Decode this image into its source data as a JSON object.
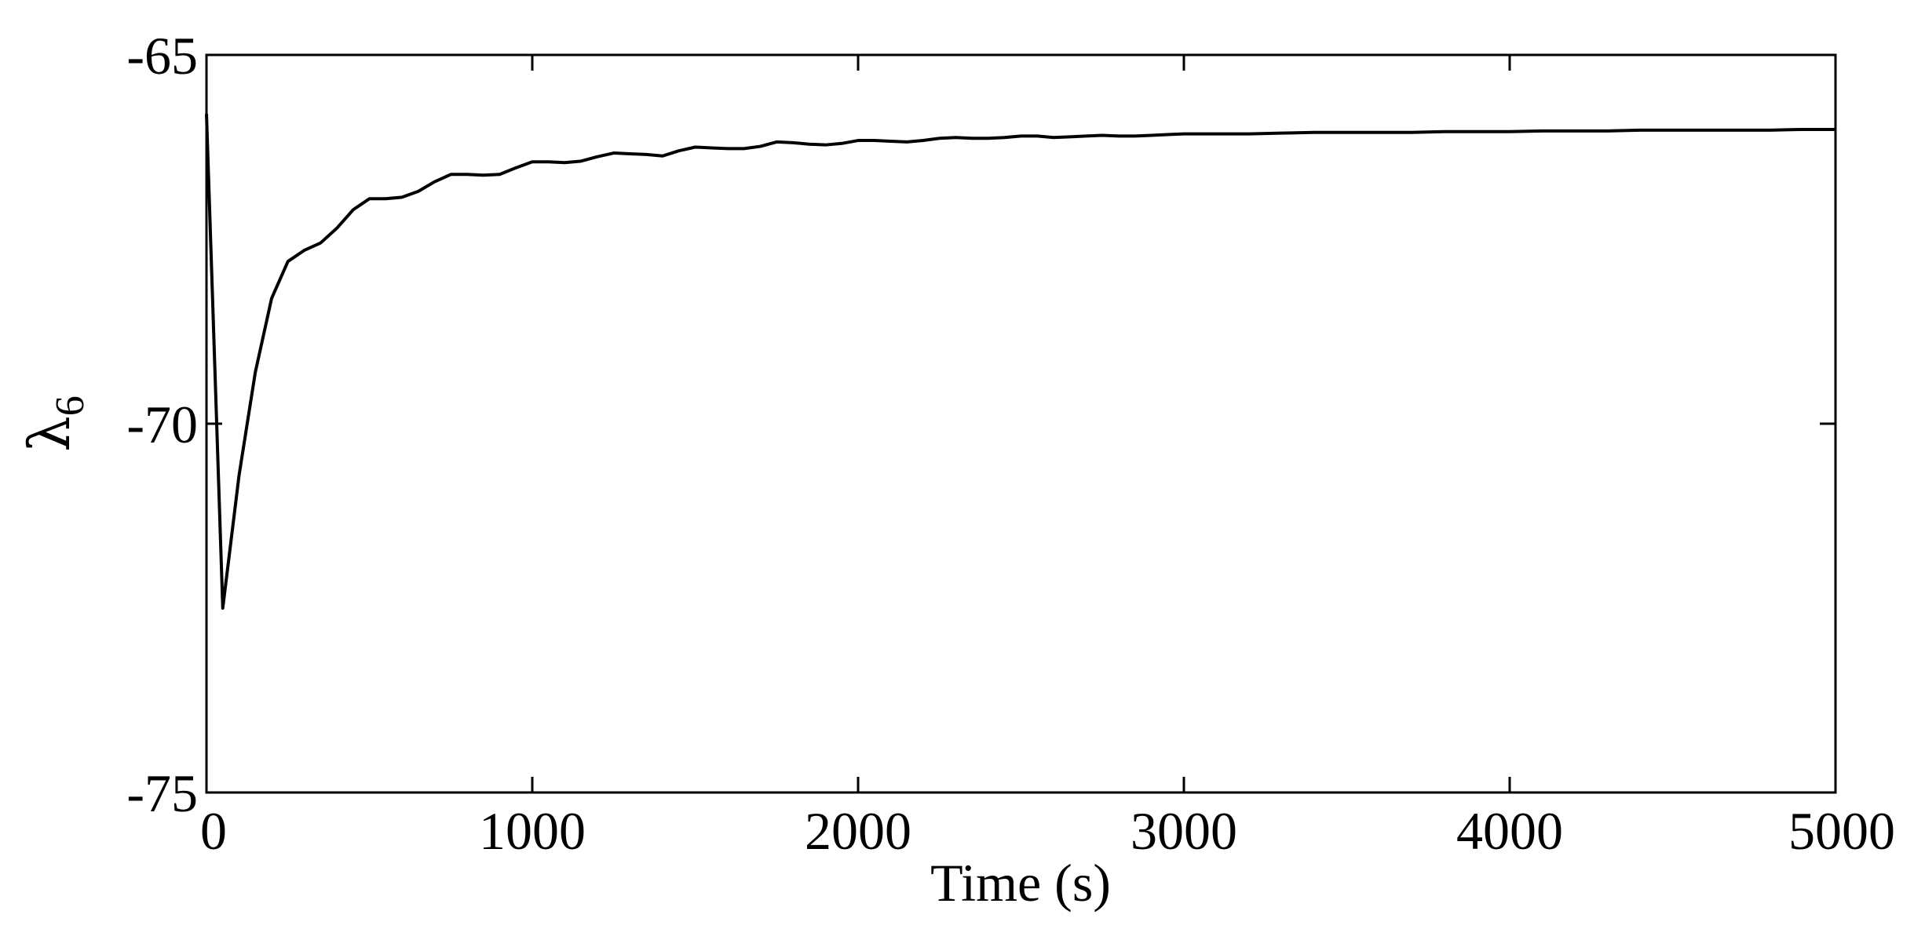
{
  "chart_data": {
    "type": "line",
    "xlabel": "Time (s)",
    "ylabel": "λ",
    "ylabel_subscript": "6",
    "xlim": [
      0,
      5000
    ],
    "ylim": [
      -75,
      -65
    ],
    "x_ticks": [
      0,
      1000,
      2000,
      3000,
      4000,
      5000
    ],
    "x_tick_labels": [
      "0",
      "1000",
      "2000",
      "3000",
      "4000",
      "5000"
    ],
    "y_ticks": [
      -65,
      -70,
      -75
    ],
    "y_tick_labels": [
      "-65",
      "-70",
      "-75"
    ],
    "grid": false,
    "line_color": "#000000",
    "series": [
      {
        "x": [
          0,
          50,
          100,
          150,
          200,
          250,
          300,
          350,
          400,
          450,
          500,
          550,
          600,
          650,
          700,
          750,
          800,
          850,
          900,
          950,
          1000,
          1050,
          1100,
          1150,
          1200,
          1250,
          1300,
          1350,
          1400,
          1450,
          1500,
          1550,
          1600,
          1650,
          1700,
          1750,
          1800,
          1850,
          1900,
          1950,
          2000,
          2050,
          2100,
          2150,
          2200,
          2250,
          2300,
          2350,
          2400,
          2450,
          2500,
          2550,
          2600,
          2650,
          2700,
          2750,
          2800,
          2850,
          2900,
          2950,
          3000,
          3100,
          3200,
          3300,
          3400,
          3500,
          3600,
          3700,
          3800,
          3900,
          4000,
          4100,
          4200,
          4300,
          4400,
          4500,
          4600,
          4700,
          4800,
          4900,
          5000
        ],
        "y": [
          -65.8,
          -72.5,
          -70.7,
          -69.3,
          -68.3,
          -67.8,
          -67.65,
          -67.55,
          -67.35,
          -67.1,
          -66.95,
          -66.95,
          -66.93,
          -66.85,
          -66.72,
          -66.62,
          -66.62,
          -66.63,
          -66.62,
          -66.53,
          -66.45,
          -66.45,
          -66.46,
          -66.44,
          -66.38,
          -66.33,
          -66.34,
          -66.35,
          -66.37,
          -66.3,
          -66.25,
          -66.26,
          -66.27,
          -66.27,
          -66.24,
          -66.18,
          -66.19,
          -66.21,
          -66.22,
          -66.2,
          -66.16,
          -66.16,
          -66.17,
          -66.18,
          -66.16,
          -66.13,
          -66.12,
          -66.13,
          -66.13,
          -66.12,
          -66.1,
          -66.1,
          -66.12,
          -66.11,
          -66.1,
          -66.09,
          -66.1,
          -66.1,
          -66.09,
          -66.08,
          -66.07,
          -66.07,
          -66.07,
          -66.06,
          -66.05,
          -66.05,
          -66.05,
          -66.05,
          -66.04,
          -66.04,
          -66.04,
          -66.03,
          -66.03,
          -66.03,
          -66.02,
          -66.02,
          -66.02,
          -66.02,
          -66.02,
          -66.01,
          -66.01
        ]
      }
    ]
  }
}
